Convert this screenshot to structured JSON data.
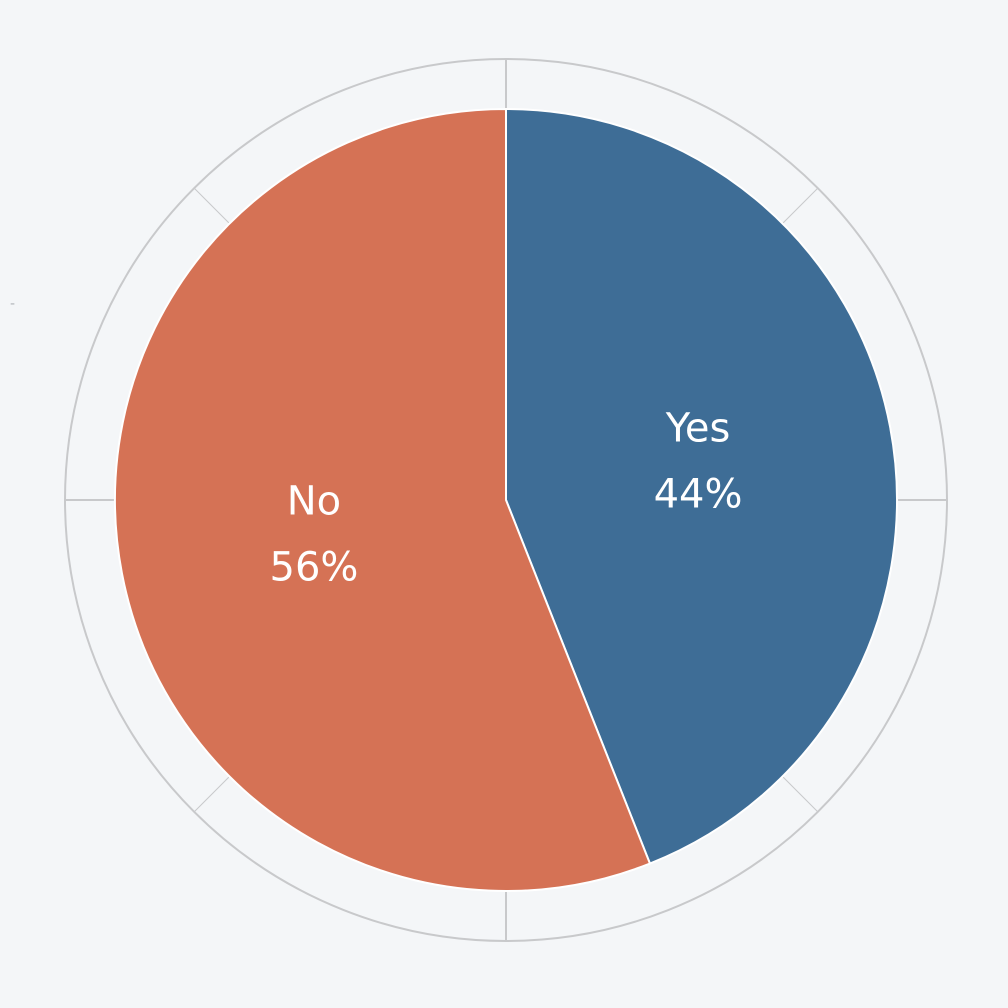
{
  "chart_data": {
    "type": "pie",
    "series": [
      {
        "name": "Yes",
        "value": 44,
        "label": "44%",
        "color": "#3e6d96"
      },
      {
        "name": "No",
        "value": 56,
        "label": "56%",
        "color": "#d57255"
      }
    ],
    "start_angle": "top",
    "direction": "clockwise",
    "legend": "none",
    "grid": true,
    "background_color": "#f4f6f8",
    "grid_color": "#c8c9cb"
  },
  "stray_mark": "-"
}
